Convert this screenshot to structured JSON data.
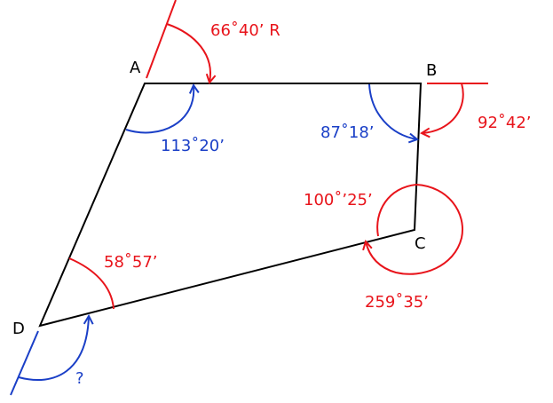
{
  "colors": {
    "outline": "#000000",
    "red": "#e8141b",
    "blue": "#1a3fc7"
  },
  "vertices": {
    "a": "A",
    "b": "B",
    "c": "C",
    "d": "D"
  },
  "angles": {
    "bearing_a": "66˚40’ R",
    "interior_a": "113˚20’",
    "interior_b": "87˚18’",
    "bearing_b": "92˚42’",
    "interior_c": "100˚’25’",
    "exterior_c": "259˚35’",
    "interior_d": "58˚57’",
    "unknown_d": "?"
  }
}
